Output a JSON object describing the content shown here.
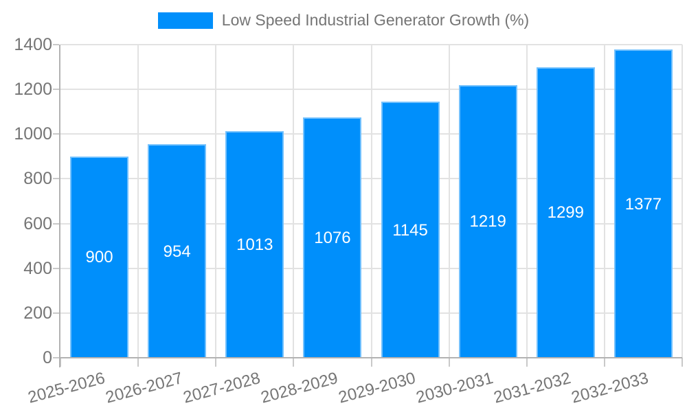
{
  "chart_data": {
    "type": "bar",
    "title": "Low Speed Industrial Generator Growth (%)",
    "categories": [
      "2025-2026",
      "2026-2027",
      "2027-2028",
      "2028-2029",
      "2029-2030",
      "2030-2031",
      "2031-2032",
      "2032-2033"
    ],
    "values": [
      900,
      954,
      1013,
      1076,
      1145,
      1219,
      1299,
      1377
    ],
    "xlabel": "",
    "ylabel": "",
    "ylim": [
      0,
      1400
    ],
    "y_ticks": [
      0,
      200,
      400,
      600,
      800,
      1000,
      1200,
      1400
    ],
    "grid": true,
    "legend_position": "top",
    "data_labels": "inside-center",
    "colors": {
      "bar": "#008FFB",
      "bar_value_label": "#ffffff",
      "axis_text": "#757575",
      "grid_line": "#e2e2e2",
      "axis_line": "#b2b2b2",
      "tick_mark": "#c9c9c9",
      "background": "#ffffff"
    }
  }
}
